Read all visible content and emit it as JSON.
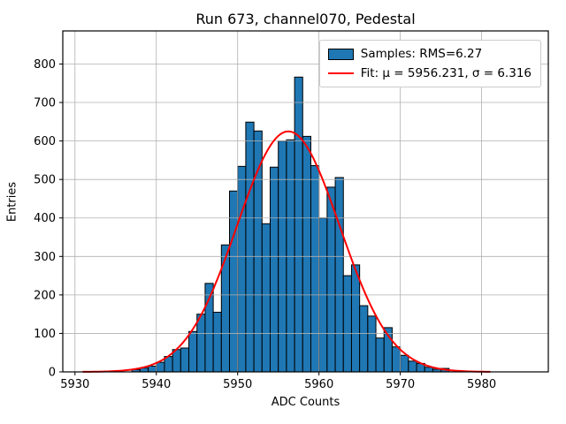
{
  "chart_data": {
    "type": "bar",
    "subtype": "histogram-with-gaussian-fit",
    "title": "Run 673, channel070, Pedestal",
    "xlabel": "ADC Counts",
    "ylabel": "Entries",
    "xlim": [
      5928.5,
      5988.2
    ],
    "ylim": [
      0,
      886
    ],
    "x_ticks": [
      5930,
      5940,
      5950,
      5960,
      5970,
      5980
    ],
    "y_ticks": [
      0,
      100,
      200,
      300,
      400,
      500,
      600,
      700,
      800
    ],
    "grid": true,
    "grid_color": "#b0b0b0",
    "bar_color": "#1f77b4",
    "bar_edge_color": "#000000",
    "fit_color": "#ff0000",
    "bin_start": 5937,
    "bin_width": 1,
    "categories_note": "bins [n, n+1) ADC counts starting at bin_start",
    "counts": [
      6,
      10,
      15,
      25,
      40,
      58,
      62,
      105,
      150,
      230,
      155,
      330,
      470,
      534,
      649,
      626,
      385,
      532,
      600,
      603,
      766,
      612,
      536,
      400,
      480,
      505,
      250,
      278,
      172,
      145,
      88,
      115,
      65,
      43,
      28,
      22,
      12,
      7,
      9
    ],
    "fit": {
      "mu": 5956.231,
      "sigma": 6.316,
      "amplitude": 625,
      "x_range": [
        5931,
        5981
      ]
    },
    "legend": [
      {
        "swatch": "patch",
        "label": "Samples: RMS=6.27"
      },
      {
        "swatch": "line",
        "label": "Fit: μ = 5956.231, σ = 6.316"
      }
    ],
    "legend_position": "upper right"
  }
}
